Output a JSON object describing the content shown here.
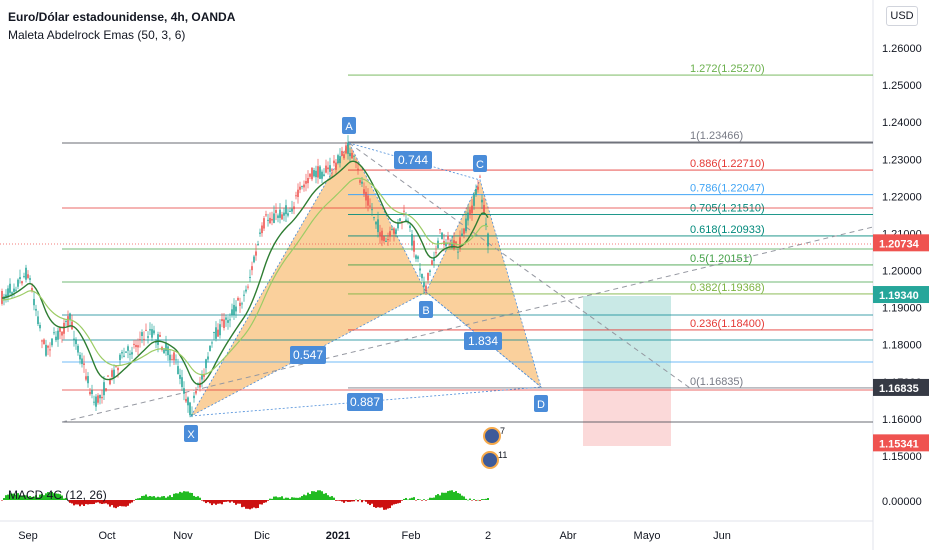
{
  "header": {
    "symbol": "Euro/Dólar estadounidense, 4h, OANDA",
    "indicator": "Maleta Abdelrock Emas (50, 3, 6)",
    "currency_button": "USD"
  },
  "macd": {
    "label": "MACD 4C (12, 26)",
    "axis_value": "0.00000"
  },
  "colors": {
    "up": "#26a69a",
    "down": "#ef5350",
    "pattern_fill": "#f6a94a",
    "pattern_stroke": "#4a8cd9",
    "macd_up": "#22bb22",
    "macd_down": "#cc1111"
  },
  "chart_data": {
    "type": "candlestick",
    "symbol": "EURUSD",
    "timeframe": "4h",
    "y_ticks": [
      "1.26000",
      "1.25000",
      "1.24000",
      "1.23000",
      "1.22000",
      "1.21000",
      "1.20000",
      "1.19000",
      "1.18000",
      "1.17000",
      "1.16000",
      "1.15000"
    ],
    "x_ticks": [
      "Sep",
      "Oct",
      "Nov",
      "Dic",
      "2021",
      "Feb",
      "2",
      "Abr",
      "Mayo",
      "Jun"
    ],
    "ylim": [
      1.145,
      1.265
    ],
    "price_labels": [
      {
        "text": "1.20734",
        "value": 1.20734,
        "color": "#ef5350"
      },
      {
        "text": "1.19340",
        "value": 1.1934,
        "color": "#26a69a"
      },
      {
        "text": "1.16835",
        "value": 1.16835,
        "color": "#363a45"
      },
      {
        "text": "1.15341",
        "value": 1.15341,
        "color": "#ef5350"
      }
    ],
    "pattern": {
      "points": [
        {
          "name": "X",
          "value": 1.1603
        },
        {
          "name": "A",
          "value": 1.2346
        },
        {
          "name": "B",
          "value": 1.195
        },
        {
          "name": "C",
          "value": 1.224
        },
        {
          "name": "D",
          "value": 1.1683
        }
      ],
      "ratios": [
        "0.547",
        "0.744",
        "1.834",
        "0.887"
      ]
    },
    "fib_levels": [
      {
        "label": "1.272(1.25270)",
        "value": 1.2527,
        "color": "#6ab04c"
      },
      {
        "label": "1(1.23466)",
        "value": 1.23466,
        "color": "#787b86"
      },
      {
        "label": "0.886(1.22710)",
        "value": 1.2271,
        "color": "#e53935"
      },
      {
        "label": "0.786(1.22047)",
        "value": 1.22047,
        "color": "#42a5f5"
      },
      {
        "label": "0.705(1.21510)",
        "value": 1.2151,
        "color": "#00897b"
      },
      {
        "label": "0.618(1.20933)",
        "value": 1.20933,
        "color": "#00897b"
      },
      {
        "label": "0.5(1.20151)",
        "value": 1.20151,
        "color": "#43a047"
      },
      {
        "label": "0.382(1.19368)",
        "value": 1.19368,
        "color": "#7cb342"
      },
      {
        "label": "0.236(1.18400)",
        "value": 1.184,
        "color": "#e53935"
      },
      {
        "label": "0(1.16835)",
        "value": 1.16835,
        "color": "#787b86"
      }
    ],
    "badges": [
      "7",
      "11"
    ]
  }
}
